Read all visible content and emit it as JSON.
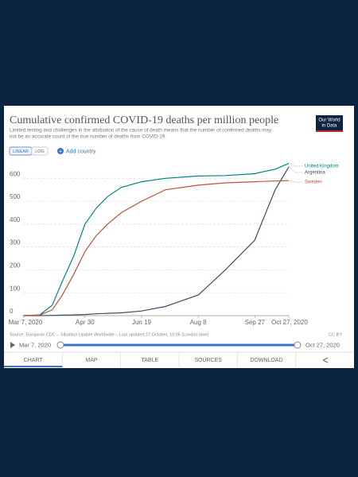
{
  "chart_data": {
    "type": "line",
    "title": "Cumulative confirmed COVID-19 deaths per million people",
    "subtitle": [
      "Limited testing and challenges in the attribution of the cause of death means that the number of confirmed deaths may",
      "not be an accurate count of the true number of deaths from COVID-19."
    ],
    "x": [
      "2020-03-07",
      "2020-03-21",
      "2020-04-01",
      "2020-04-10",
      "2020-04-20",
      "2020-04-30",
      "2020-05-10",
      "2020-05-20",
      "2020-06-01",
      "2020-06-19",
      "2020-07-10",
      "2020-08-08",
      "2020-09-01",
      "2020-09-27",
      "2020-10-01",
      "2020-10-15",
      "2020-10-27"
    ],
    "series": [
      {
        "name": "United Kingdom",
        "color": "#00847e",
        "values": [
          0,
          3,
          45,
          150,
          260,
          400,
          470,
          520,
          560,
          585,
          600,
          610,
          612,
          620,
          625,
          640,
          665
        ]
      },
      {
        "name": "Argentina",
        "color": "#3c4e66",
        "values": [
          0,
          0,
          1,
          2,
          3,
          5,
          8,
          10,
          12,
          20,
          40,
          90,
          200,
          330,
          380,
          550,
          650
        ]
      },
      {
        "name": "Sweden",
        "color": "#c15034",
        "values": [
          0,
          2,
          25,
          90,
          180,
          280,
          350,
          400,
          450,
          500,
          550,
          570,
          580,
          585,
          586,
          588,
          590
        ]
      }
    ],
    "xlim": [
      "2020-03-07",
      "2020-10-27"
    ],
    "xticks": [
      {
        "value": "2020-03-07",
        "label": "Mar 7, 2020"
      },
      {
        "value": "2020-04-30",
        "label": "Apr 30"
      },
      {
        "value": "2020-06-19",
        "label": "Jun 19"
      },
      {
        "value": "2020-08-08",
        "label": "Aug 8"
      },
      {
        "value": "2020-09-27",
        "label": "Sep 27"
      },
      {
        "value": "2020-10-27",
        "label": "Oct 27, 2020"
      }
    ],
    "ylim": [
      0,
      660
    ],
    "yticks": [
      0,
      100,
      200,
      300,
      400,
      500,
      600
    ],
    "grid": true,
    "source": "Source: European CDC – Situation Update Worldwide – Last updated 27 October, 10:05 (London time)",
    "license": "CC BY"
  },
  "logo": [
    "Our World",
    "in Data"
  ],
  "controls": {
    "linear": "LINEAR",
    "log": "LOG",
    "add": "Add country"
  },
  "timeline": {
    "start": "Mar 7, 2020",
    "end": "Oct 27, 2020"
  },
  "tabs": [
    "CHART",
    "MAP",
    "TABLE",
    "SOURCES",
    "DOWNLOAD"
  ]
}
